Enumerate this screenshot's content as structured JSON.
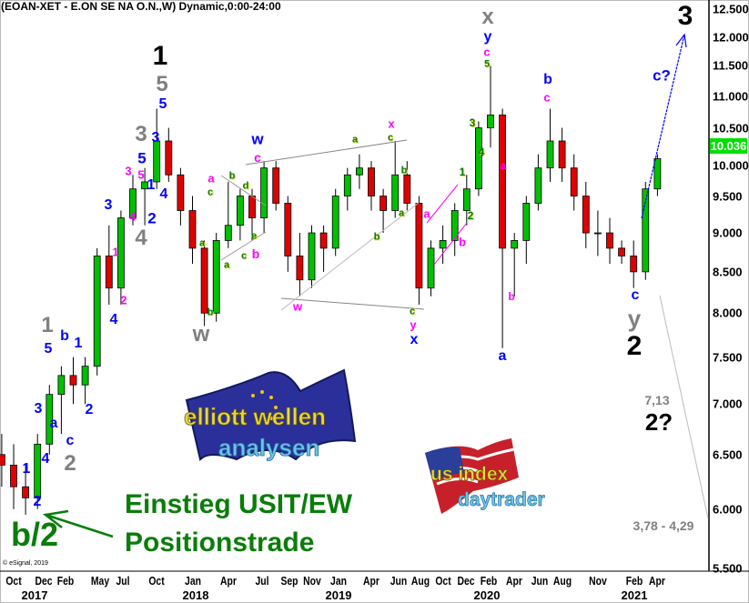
{
  "title": "(EOAN-XET - E.ON SE NA O.N.,W) Dynamic,0:00-24:00",
  "copyright": "© eSignal, 2019",
  "chart_data": {
    "type": "candlestick",
    "scale": "log",
    "ylim": [
      5.5,
      12.5
    ],
    "yticks": [
      "12.500",
      "12.000",
      "11.500",
      "11.000",
      "10.500",
      "10.000",
      "9.500",
      "9.000",
      "8.500",
      "8.000",
      "7.500",
      "7.000",
      "6.500",
      "6.000",
      "5.500"
    ],
    "last_price": "10.036",
    "last_price_color": "#00e000",
    "up_color": "#00c000",
    "down_color": "#e00000",
    "xticks": [
      "Oct",
      "Dec",
      "Feb",
      "May",
      "Jul",
      "Oct",
      "Jan",
      "Apr",
      "Jul",
      "Sep",
      "Nov",
      "Jan",
      "Apr",
      "Jun",
      "Aug",
      "Oct",
      "Dec",
      "Feb",
      "Apr",
      "Jun",
      "Aug",
      "Nov",
      "Feb",
      "Apr"
    ],
    "years": [
      "2017",
      "2018",
      "2019",
      "2020",
      "2021"
    ],
    "candles": [
      [
        "2016-09",
        6.5,
        6.7,
        6.2,
        6.4
      ],
      [
        "2016-10",
        6.4,
        6.6,
        6.0,
        6.2
      ],
      [
        "2016-11",
        6.2,
        6.4,
        5.95,
        6.1
      ],
      [
        "2016-12",
        6.1,
        6.7,
        6.0,
        6.6
      ],
      [
        "2017-01",
        6.6,
        7.2,
        6.5,
        7.1
      ],
      [
        "2017-02",
        7.1,
        7.4,
        6.7,
        7.3
      ],
      [
        "2017-03",
        7.3,
        7.5,
        7.0,
        7.2
      ],
      [
        "2017-04",
        7.2,
        7.5,
        7.0,
        7.4
      ],
      [
        "2017-05",
        7.4,
        8.8,
        7.3,
        8.7
      ],
      [
        "2017-06",
        8.7,
        9.1,
        8.1,
        8.3
      ],
      [
        "2017-07",
        8.3,
        9.3,
        8.1,
        9.2
      ],
      [
        "2017-08",
        9.2,
        9.8,
        9.1,
        9.6
      ],
      [
        "2017-09",
        9.6,
        9.9,
        9.1,
        9.7
      ],
      [
        "2017-10",
        9.7,
        10.8,
        9.6,
        10.3
      ],
      [
        "2017-11",
        10.3,
        10.5,
        9.7,
        9.8
      ],
      [
        "2017-12",
        9.8,
        9.9,
        9.1,
        9.3
      ],
      [
        "2018-01",
        9.3,
        9.5,
        8.6,
        8.8
      ],
      [
        "2018-02",
        8.8,
        8.9,
        7.85,
        8.0
      ],
      [
        "2018-03",
        8.0,
        9.0,
        7.9,
        8.9
      ],
      [
        "2018-04",
        8.9,
        9.7,
        8.8,
        9.1
      ],
      [
        "2018-05",
        9.1,
        9.6,
        8.9,
        9.5
      ],
      [
        "2018-06",
        9.5,
        9.6,
        8.9,
        9.2
      ],
      [
        "2018-07",
        9.2,
        10.0,
        9.0,
        9.9
      ],
      [
        "2018-08",
        9.9,
        10.0,
        9.3,
        9.4
      ],
      [
        "2018-09",
        9.4,
        9.5,
        8.5,
        8.7
      ],
      [
        "2018-10",
        8.7,
        9.0,
        8.2,
        8.4
      ],
      [
        "2018-11",
        8.4,
        9.1,
        8.3,
        9.0
      ],
      [
        "2018-12",
        9.0,
        9.1,
        8.5,
        8.8
      ],
      [
        "2019-01",
        8.8,
        9.6,
        8.7,
        9.5
      ],
      [
        "2019-02",
        9.5,
        9.9,
        9.3,
        9.8
      ],
      [
        "2019-03",
        9.8,
        10.1,
        9.6,
        9.9
      ],
      [
        "2019-04",
        9.9,
        10.0,
        9.3,
        9.5
      ],
      [
        "2019-05",
        9.5,
        9.6,
        9.0,
        9.3
      ],
      [
        "2019-06",
        9.3,
        10.3,
        9.2,
        9.8
      ],
      [
        "2019-07",
        9.8,
        10.0,
        9.3,
        9.4
      ],
      [
        "2019-08",
        9.4,
        9.5,
        8.1,
        8.3
      ],
      [
        "2019-09",
        8.3,
        8.9,
        8.2,
        8.8
      ],
      [
        "2019-10",
        8.8,
        9.1,
        8.6,
        8.9
      ],
      [
        "2019-11",
        8.9,
        9.4,
        8.7,
        9.3
      ],
      [
        "2019-12",
        9.3,
        9.8,
        9.1,
        9.6
      ],
      [
        "2020-01",
        9.6,
        10.6,
        9.5,
        10.5
      ],
      [
        "2020-02",
        10.5,
        11.5,
        10.2,
        10.7
      ],
      [
        "2020-03",
        10.7,
        10.8,
        7.6,
        8.8
      ],
      [
        "2020-04",
        8.8,
        9.0,
        8.2,
        8.9
      ],
      [
        "2020-05",
        8.9,
        9.5,
        8.6,
        9.4
      ],
      [
        "2020-06",
        9.4,
        10.1,
        9.3,
        9.9
      ],
      [
        "2020-07",
        9.9,
        10.8,
        9.7,
        10.3
      ],
      [
        "2020-08",
        10.3,
        10.5,
        9.7,
        9.9
      ],
      [
        "2020-09",
        9.9,
        10.1,
        9.3,
        9.5
      ],
      [
        "2020-10",
        9.5,
        9.7,
        8.8,
        9.0
      ],
      [
        "2020-11",
        9.0,
        9.3,
        8.7,
        9.0
      ],
      [
        "2020-12",
        9.0,
        9.2,
        8.6,
        8.8
      ],
      [
        "2021-01",
        8.8,
        8.9,
        8.6,
        8.7
      ],
      [
        "2021-02",
        8.7,
        8.9,
        8.3,
        8.5
      ],
      [
        "2021-03",
        8.5,
        9.7,
        8.4,
        9.6
      ],
      [
        "2021-04",
        9.6,
        10.1,
        9.5,
        10.036
      ]
    ],
    "annotations": [
      {
        "t": "1",
        "c": "#000000"
      },
      {
        "t": "5",
        "c": "#808080"
      },
      {
        "t": "5",
        "c": "#0000ff"
      },
      {
        "t": "3",
        "c": "#808080"
      },
      {
        "t": "3",
        "c": "#0000ff"
      },
      {
        "t": "5",
        "c": "#0000ff"
      },
      {
        "t": "5",
        "c": "#ff00ff"
      },
      {
        "t": "3",
        "c": "#ff00ff"
      },
      {
        "t": "1",
        "c": "#0000ff"
      },
      {
        "t": "4",
        "c": "#0000ff"
      },
      {
        "t": "4",
        "c": "#ff00ff"
      },
      {
        "t": "2",
        "c": "#0000ff"
      },
      {
        "t": "4",
        "c": "#808080"
      },
      {
        "t": "3",
        "c": "#0000ff"
      },
      {
        "t": "1",
        "c": "#ff00ff"
      },
      {
        "t": "2",
        "c": "#ff00ff"
      },
      {
        "t": "4",
        "c": "#0000ff"
      },
      {
        "t": "w",
        "c": "#808080"
      },
      {
        "t": "b",
        "c": "#0a7d0a"
      },
      {
        "t": "a",
        "c": "#0a7d0a"
      },
      {
        "t": "a",
        "c": "#ff00ff"
      },
      {
        "t": "c",
        "c": "#0a7d0a"
      },
      {
        "t": "1",
        "c": "#808080"
      },
      {
        "t": "5",
        "c": "#0000ff"
      },
      {
        "t": "b",
        "c": "#0000ff"
      },
      {
        "t": "1",
        "c": "#0000ff"
      },
      {
        "t": "3",
        "c": "#0000ff"
      },
      {
        "t": "a",
        "c": "#0000ff"
      },
      {
        "t": "2",
        "c": "#0000ff"
      },
      {
        "t": "c",
        "c": "#0000ff"
      },
      {
        "t": "2",
        "c": "#808080"
      },
      {
        "t": "4",
        "c": "#0000ff"
      },
      {
        "t": "1",
        "c": "#0000ff"
      },
      {
        "t": "2",
        "c": "#0000ff"
      },
      {
        "t": "b/2",
        "c": "#0a7d0a"
      },
      {
        "t": "w",
        "c": "#0000ff"
      },
      {
        "t": "c",
        "c": "#ff00ff"
      },
      {
        "t": "b",
        "c": "#0a7d0a"
      },
      {
        "t": "d",
        "c": "#0a7d0a"
      },
      {
        "t": "a",
        "c": "#0a7d0a"
      },
      {
        "t": "c",
        "c": "#0a7d0a"
      },
      {
        "t": "e",
        "c": "#0a7d0a"
      },
      {
        "t": "b",
        "c": "#ff00ff"
      },
      {
        "t": "a",
        "c": "#0a7d0a"
      },
      {
        "t": "x",
        "c": "#ff00ff"
      },
      {
        "t": "c",
        "c": "#0a7d0a"
      },
      {
        "t": "b",
        "c": "#0a7d0a"
      },
      {
        "t": "a",
        "c": "#0a7d0a"
      },
      {
        "t": "b",
        "c": "#0a7d0a"
      },
      {
        "t": "w",
        "c": "#ff00ff"
      },
      {
        "t": "c",
        "c": "#0a7d0a"
      },
      {
        "t": "y",
        "c": "#ff00ff"
      },
      {
        "t": "x",
        "c": "#0000ff"
      },
      {
        "t": "a",
        "c": "#ff00ff"
      },
      {
        "t": "x",
        "c": "#808080"
      },
      {
        "t": "y",
        "c": "#0000ff"
      },
      {
        "t": "c",
        "c": "#ff00ff"
      },
      {
        "t": "5",
        "c": "#0a7d0a"
      },
      {
        "t": "3",
        "c": "#0a7d0a"
      },
      {
        "t": "4",
        "c": "#0a7d0a"
      },
      {
        "t": "1",
        "c": "#0a7d0a"
      },
      {
        "t": "2",
        "c": "#0a7d0a"
      },
      {
        "t": "b",
        "c": "#ff00ff"
      },
      {
        "t": "b",
        "c": "#0000ff"
      },
      {
        "t": "c",
        "c": "#ff00ff"
      },
      {
        "t": "a",
        "c": "#ff00ff"
      },
      {
        "t": "b",
        "c": "#ff00ff"
      },
      {
        "t": "a",
        "c": "#0000ff"
      },
      {
        "t": "c?",
        "c": "#0000ff"
      },
      {
        "t": "3",
        "c": "#000000"
      },
      {
        "t": "c",
        "c": "#0000ff"
      },
      {
        "t": "y",
        "c": "#808080"
      },
      {
        "t": "2",
        "c": "#000000"
      },
      {
        "t": "7,13",
        "c": "#808080"
      },
      {
        "t": "2?",
        "c": "#000000"
      },
      {
        "t": "3,78 - 4,29",
        "c": "#808080"
      }
    ]
  },
  "callout": {
    "line1": "Einstieg USIT/EW",
    "line2": "Positionstrade",
    "color": "#0a7d0a"
  },
  "logos": {
    "elliott": "elliott wellen analysen",
    "usindex": "us index daytrader"
  }
}
